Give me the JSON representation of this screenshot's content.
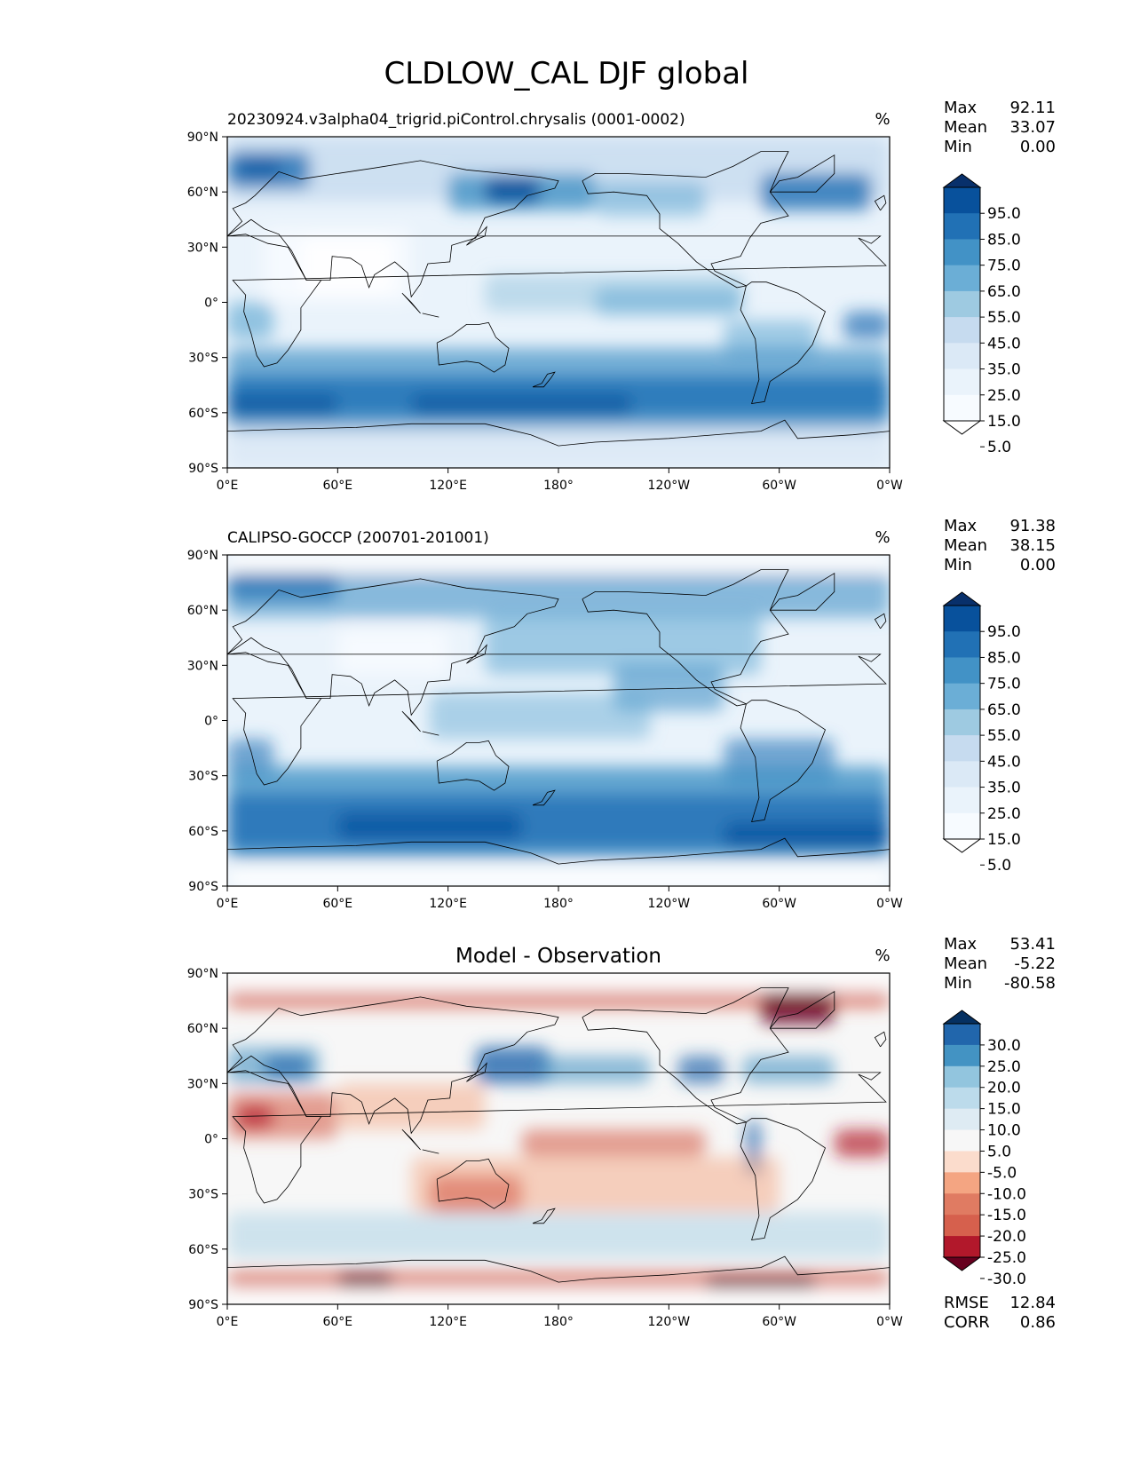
{
  "title": "CLDLOW_CAL DJF global",
  "lat_ticks": [
    "90°N",
    "60°N",
    "30°N",
    "0°",
    "30°S",
    "60°S",
    "90°S"
  ],
  "lon_ticks": [
    "0°E",
    "60°E",
    "120°E",
    "180°",
    "120°W",
    "60°W",
    "0°W"
  ],
  "panels": [
    {
      "id": "model",
      "left_title": "20230924.v3alpha04_trigrid.piControl.chrysalis (0001-0002)",
      "center_title": "",
      "units": "%",
      "stats": [
        {
          "label": "Max",
          "value": "92.11"
        },
        {
          "label": "Mean",
          "value": "33.07"
        },
        {
          "label": "Min",
          "value": "0.00"
        }
      ],
      "colorbar": {
        "labels": [
          "95.0",
          "85.0",
          "75.0",
          "65.0",
          "55.0",
          "45.0",
          "35.0",
          "25.0",
          "15.0",
          "5.0"
        ],
        "colors": [
          "#08306b",
          "#08519c",
          "#2171b5",
          "#4292c6",
          "#6baed6",
          "#9ecae1",
          "#c6dbef",
          "#dbe9f6",
          "#eaf3fb",
          "#f7fbff",
          "#ffffff"
        ]
      },
      "footer_stats": []
    },
    {
      "id": "obs",
      "left_title": "CALIPSO-GOCCP (200701-201001)",
      "center_title": "",
      "units": "%",
      "stats": [
        {
          "label": "Max",
          "value": "91.38"
        },
        {
          "label": "Mean",
          "value": "38.15"
        },
        {
          "label": "Min",
          "value": "0.00"
        }
      ],
      "colorbar": {
        "labels": [
          "95.0",
          "85.0",
          "75.0",
          "65.0",
          "55.0",
          "45.0",
          "35.0",
          "25.0",
          "15.0",
          "5.0"
        ],
        "colors": [
          "#08306b",
          "#08519c",
          "#2171b5",
          "#4292c6",
          "#6baed6",
          "#9ecae1",
          "#c6dbef",
          "#dbe9f6",
          "#eaf3fb",
          "#f7fbff",
          "#ffffff"
        ]
      },
      "footer_stats": []
    },
    {
      "id": "diff",
      "left_title": "",
      "center_title": "Model - Observation",
      "units": "%",
      "stats": [
        {
          "label": "Max",
          "value": "53.41"
        },
        {
          "label": "Mean",
          "value": "-5.22"
        },
        {
          "label": "Min",
          "value": "-80.58"
        }
      ],
      "colorbar": {
        "labels": [
          "30.0",
          "25.0",
          "20.0",
          "15.0",
          "10.0",
          "5.0",
          "-5.0",
          "-10.0",
          "-15.0",
          "-20.0",
          "-25.0",
          "-30.0"
        ],
        "colors": [
          "#053061",
          "#2166ac",
          "#4393c3",
          "#92c5de",
          "#bcdbeb",
          "#deebf3",
          "#f7f7f7",
          "#fbdccc",
          "#f4a582",
          "#e07b62",
          "#d6604d",
          "#b2182b",
          "#67001f"
        ]
      },
      "footer_stats": [
        {
          "label": "RMSE",
          "value": "12.84"
        },
        {
          "label": "CORR",
          "value": "0.86"
        }
      ]
    }
  ],
  "chart_data": [
    {
      "type": "heatmap",
      "title": "20230924.v3alpha04_trigrid.piControl.chrysalis (0001-0002)",
      "units": "%",
      "projection": "PlateCarree, central longitude 180",
      "xlabel_ticks": [
        "0°E",
        "60°E",
        "120°E",
        "180°",
        "120°W",
        "60°W",
        "0°W"
      ],
      "ylabel_ticks": [
        "90°N",
        "60°N",
        "30°N",
        "0°",
        "30°S",
        "60°S",
        "90°S"
      ],
      "levels": [
        5,
        15,
        25,
        35,
        45,
        55,
        65,
        75,
        85,
        95
      ],
      "stats": {
        "max": 92.11,
        "mean": 33.07,
        "min": 0.0
      }
    },
    {
      "type": "heatmap",
      "title": "CALIPSO-GOCCP (200701-201001)",
      "units": "%",
      "projection": "PlateCarree, central longitude 180",
      "xlabel_ticks": [
        "0°E",
        "60°E",
        "120°E",
        "180°",
        "120°W",
        "60°W",
        "0°W"
      ],
      "ylabel_ticks": [
        "90°N",
        "60°N",
        "30°N",
        "0°",
        "30°S",
        "60°S",
        "90°S"
      ],
      "levels": [
        5,
        15,
        25,
        35,
        45,
        55,
        65,
        75,
        85,
        95
      ],
      "stats": {
        "max": 91.38,
        "mean": 38.15,
        "min": 0.0
      }
    },
    {
      "type": "heatmap",
      "title": "Model - Observation",
      "units": "%",
      "projection": "PlateCarree, central longitude 180",
      "xlabel_ticks": [
        "0°E",
        "60°E",
        "120°E",
        "180°",
        "120°W",
        "60°W",
        "0°W"
      ],
      "ylabel_ticks": [
        "90°N",
        "60°N",
        "30°N",
        "0°",
        "30°S",
        "60°S",
        "90°S"
      ],
      "levels": [
        -30,
        -25,
        -20,
        -15,
        -10,
        -5,
        5,
        10,
        15,
        20,
        25,
        30
      ],
      "stats": {
        "max": 53.41,
        "mean": -5.22,
        "min": -80.58,
        "rmse": 12.84,
        "corr": 0.86
      }
    }
  ]
}
